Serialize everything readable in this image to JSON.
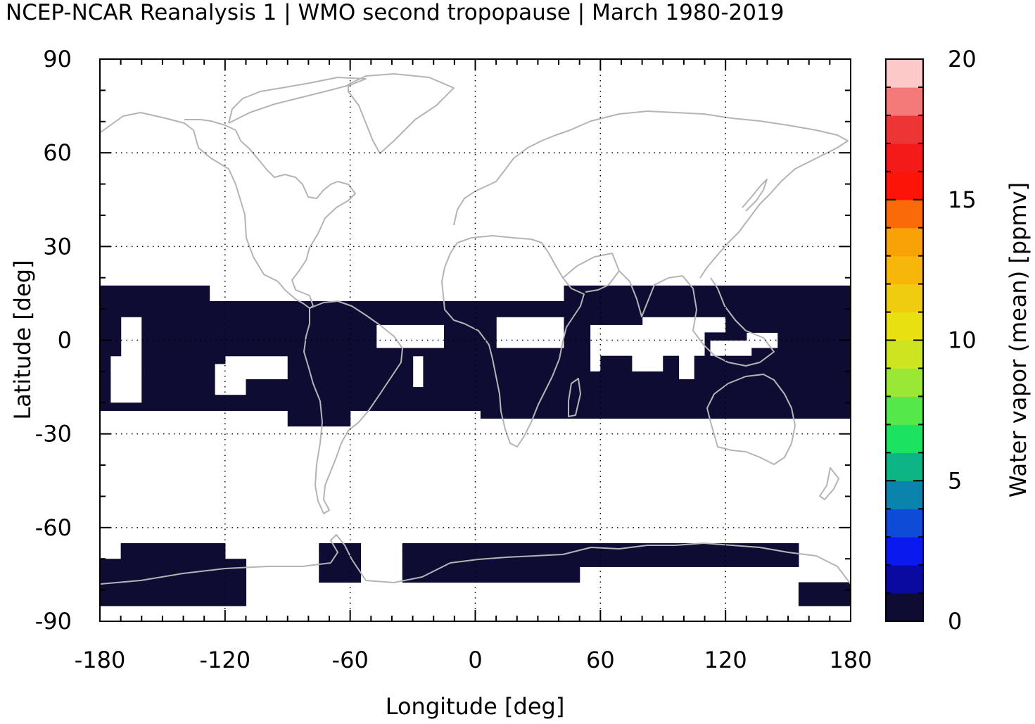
{
  "title": "NCEP-NCAR Reanalysis 1 | WMO second tropopause | March 1980-2019",
  "chart_data": {
    "type": "heatmap",
    "title": "NCEP-NCAR Reanalysis 1 | WMO second tropopause | March 1980-2019",
    "xlabel": "Longitude [deg]",
    "ylabel": "Latitude [deg]",
    "xlim": [
      -180,
      180
    ],
    "ylim": [
      -90,
      90
    ],
    "x_ticks": [
      -180,
      -120,
      -60,
      0,
      60,
      120,
      180
    ],
    "x_tick_labels": [
      "-180",
      "-120",
      "-60",
      "0",
      "60",
      "120",
      "180"
    ],
    "y_ticks": [
      -90,
      -60,
      -30,
      0,
      30,
      60,
      90
    ],
    "y_tick_labels": [
      "-90",
      "-60",
      "-30",
      "0",
      "30",
      "60",
      "90"
    ],
    "grid": true,
    "background_color": "#ffffff",
    "coastline_color": "#b4b4b4",
    "colorbar": {
      "label": "Water vapor (mean) [ppmv]",
      "min": 0,
      "max": 20,
      "ticks": [
        0,
        5,
        10,
        15,
        20
      ],
      "tick_labels": [
        "0",
        "5",
        "10",
        "15",
        "20"
      ],
      "colors": [
        "#0e0c33",
        "#0a0aa0",
        "#0a1aef",
        "#0e4cd8",
        "#0b84ad",
        "#0cb583",
        "#1be35f",
        "#55e84a",
        "#9ae835",
        "#cde520",
        "#e8e010",
        "#f0cc10",
        "#f6b70a",
        "#f8a208",
        "#fb6a08",
        "#fd1408",
        "#f41a1a",
        "#ee3535",
        "#f47a7a",
        "#fcc8c8"
      ]
    },
    "data_cells": {
      "value": 0.4,
      "color": "#0e0c33",
      "cell_size_deg": [
        2.5,
        2.5
      ],
      "lon_range_deg": [
        -180,
        180
      ],
      "regions_lat_lon": [
        [
          -22.5,
          17.5,
          -180,
          -127.5
        ],
        [
          -22.5,
          12.5,
          -127.5,
          -60
        ],
        [
          -27.5,
          12.5,
          -90,
          -60
        ],
        [
          -22.5,
          12.5,
          -60,
          2.5
        ],
        [
          -25,
          12.5,
          2.5,
          57.5
        ],
        [
          -25,
          17.5,
          42.5,
          180
        ],
        [
          -75,
          -65,
          -170,
          -120
        ],
        [
          -85,
          -70,
          -180,
          -110
        ],
        [
          -77.5,
          -65,
          -75,
          -55
        ],
        [
          -77.5,
          -65,
          -35,
          50
        ],
        [
          -72.5,
          -65,
          40,
          155
        ],
        [
          -85,
          -77.5,
          155,
          180
        ]
      ],
      "clear_regions_lat_lon": [
        [
          -5,
          7.5,
          -170,
          -160
        ],
        [
          -20,
          -5,
          -175,
          -160
        ],
        [
          -12.5,
          -5,
          -120,
          -90
        ],
        [
          -17.5,
          -7.5,
          -125,
          -110
        ],
        [
          -2.5,
          5,
          -47.5,
          -35
        ],
        [
          -2.5,
          5,
          -37.5,
          -15
        ],
        [
          -15,
          -5,
          -30,
          -25
        ],
        [
          -2.5,
          7.5,
          10,
          42.5
        ],
        [
          -10,
          -2.5,
          55,
          60
        ],
        [
          -5,
          5,
          55,
          75
        ],
        [
          -10,
          5,
          75,
          90
        ],
        [
          -5,
          5,
          90,
          110
        ],
        [
          2.5,
          7.5,
          80,
          120
        ],
        [
          -5,
          0,
          112.5,
          132.5
        ],
        [
          -2.5,
          2.5,
          130,
          145
        ],
        [
          -12.5,
          -5,
          97.5,
          105
        ],
        [
          -82.5,
          -75,
          -100,
          -80
        ]
      ]
    }
  }
}
